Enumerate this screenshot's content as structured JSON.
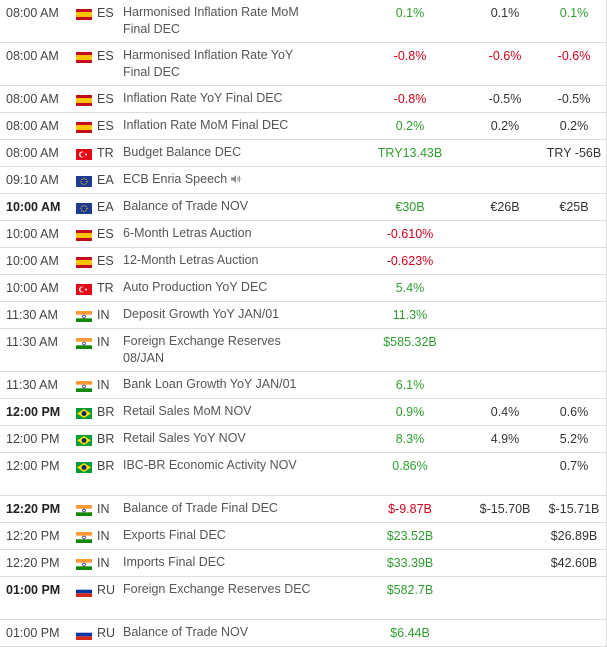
{
  "rows": [
    {
      "time": "08:00 AM",
      "bold": false,
      "flag": "es",
      "cc": "ES",
      "event": "Harmonised Inflation Rate MoM Final DEC",
      "tall": true,
      "actual": "0.1%",
      "actual_color": "green",
      "consensus": "0.1%",
      "previous": "0.1%",
      "previous_color": "green"
    },
    {
      "time": "08:00 AM",
      "bold": false,
      "flag": "es",
      "cc": "ES",
      "event": "Harmonised Inflation Rate YoY Final DEC",
      "tall": true,
      "actual": "-0.8%",
      "actual_color": "red",
      "consensus": "-0.6%",
      "consensus_color": "red",
      "previous": "-0.6%",
      "previous_color": "red"
    },
    {
      "time": "08:00 AM",
      "bold": false,
      "flag": "es",
      "cc": "ES",
      "event": "Inflation Rate YoY Final DEC",
      "tall": false,
      "actual": "-0.8%",
      "actual_color": "red",
      "consensus": "-0.5%",
      "previous": "-0.5%"
    },
    {
      "time": "08:00 AM",
      "bold": false,
      "flag": "es",
      "cc": "ES",
      "event": "Inflation Rate MoM Final DEC",
      "tall": false,
      "actual": "0.2%",
      "actual_color": "green",
      "consensus": "0.2%",
      "previous": "0.2%"
    },
    {
      "time": "08:00 AM",
      "bold": false,
      "flag": "tr",
      "cc": "TR",
      "event": "Budget Balance DEC",
      "tall": false,
      "actual": "TRY13.43B",
      "actual_color": "green",
      "consensus": "",
      "previous": "TRY -56B"
    },
    {
      "time": "09:10 AM",
      "bold": false,
      "flag": "eu",
      "cc": "EA",
      "event": "ECB Enria Speech",
      "speaker": true,
      "tall": false,
      "actual": "",
      "consensus": "",
      "previous": ""
    },
    {
      "time": "10:00 AM",
      "bold": true,
      "flag": "eu",
      "cc": "EA",
      "event": "Balance of Trade NOV",
      "tall": false,
      "actual": "€30B",
      "actual_color": "green",
      "consensus": "€26B",
      "previous": "€25B"
    },
    {
      "time": "10:00 AM",
      "bold": false,
      "flag": "es",
      "cc": "ES",
      "event": "6-Month Letras Auction",
      "tall": false,
      "actual": "-0.610%",
      "actual_color": "red",
      "consensus": "",
      "previous": ""
    },
    {
      "time": "10:00 AM",
      "bold": false,
      "flag": "es",
      "cc": "ES",
      "event": "12-Month Letras Auction",
      "tall": false,
      "actual": "-0.623%",
      "actual_color": "red",
      "consensus": "",
      "previous": ""
    },
    {
      "time": "10:00 AM",
      "bold": false,
      "flag": "tr",
      "cc": "TR",
      "event": "Auto Production YoY DEC",
      "tall": false,
      "actual": "5.4%",
      "actual_color": "green",
      "consensus": "",
      "previous": ""
    },
    {
      "time": "11:30 AM",
      "bold": false,
      "flag": "in",
      "cc": "IN",
      "event": "Deposit Growth YoY JAN/01",
      "tall": false,
      "actual": "11.3%",
      "actual_color": "green",
      "consensus": "",
      "previous": ""
    },
    {
      "time": "11:30 AM",
      "bold": false,
      "flag": "in",
      "cc": "IN",
      "event": "Foreign Exchange Reserves 08/JAN",
      "tall": true,
      "actual": "$585.32B",
      "actual_color": "green",
      "consensus": "",
      "previous": ""
    },
    {
      "time": "11:30 AM",
      "bold": false,
      "flag": "in",
      "cc": "IN",
      "event": "Bank Loan Growth YoY JAN/01",
      "tall": false,
      "actual": "6.1%",
      "actual_color": "green",
      "consensus": "",
      "previous": ""
    },
    {
      "time": "12:00 PM",
      "bold": true,
      "flag": "br",
      "cc": "BR",
      "event": "Retail Sales MoM NOV",
      "tall": false,
      "actual": "0.9%",
      "actual_color": "green",
      "consensus": "0.4%",
      "previous": "0.6%"
    },
    {
      "time": "12:00 PM",
      "bold": false,
      "flag": "br",
      "cc": "BR",
      "event": "Retail Sales YoY NOV",
      "tall": false,
      "actual": "8.3%",
      "actual_color": "green",
      "consensus": "4.9%",
      "previous": "5.2%"
    },
    {
      "time": "12:00 PM",
      "bold": false,
      "flag": "br",
      "cc": "BR",
      "event": "IBC-BR Economic Activity NOV",
      "tall": true,
      "actual": "0.86%",
      "actual_color": "green",
      "consensus": "",
      "previous": "0.7%"
    },
    {
      "time": "12:20 PM",
      "bold": true,
      "flag": "in",
      "cc": "IN",
      "event": "Balance of Trade Final DEC",
      "tall": false,
      "actual": "$-9.87B",
      "actual_color": "red",
      "consensus": "$-15.70B",
      "previous": "$-15.71B"
    },
    {
      "time": "12:20 PM",
      "bold": false,
      "flag": "in",
      "cc": "IN",
      "event": "Exports Final DEC",
      "tall": false,
      "actual": "$23.52B",
      "actual_color": "green",
      "consensus": "",
      "previous": "$26.89B"
    },
    {
      "time": "12:20 PM",
      "bold": false,
      "flag": "in",
      "cc": "IN",
      "event": "Imports Final DEC",
      "tall": false,
      "actual": "$33.39B",
      "actual_color": "green",
      "consensus": "",
      "previous": "$42.60B"
    },
    {
      "time": "01:00 PM",
      "bold": true,
      "flag": "ru",
      "cc": "RU",
      "event": "Foreign Exchange Reserves DEC",
      "tall": true,
      "actual": "$582.7B",
      "actual_color": "green",
      "consensus": "",
      "previous": ""
    },
    {
      "time": "01:00 PM",
      "bold": false,
      "flag": "ru",
      "cc": "RU",
      "event": "Balance of Trade NOV",
      "tall": false,
      "actual": "$6.44B",
      "actual_color": "green",
      "consensus": "",
      "previous": ""
    }
  ]
}
